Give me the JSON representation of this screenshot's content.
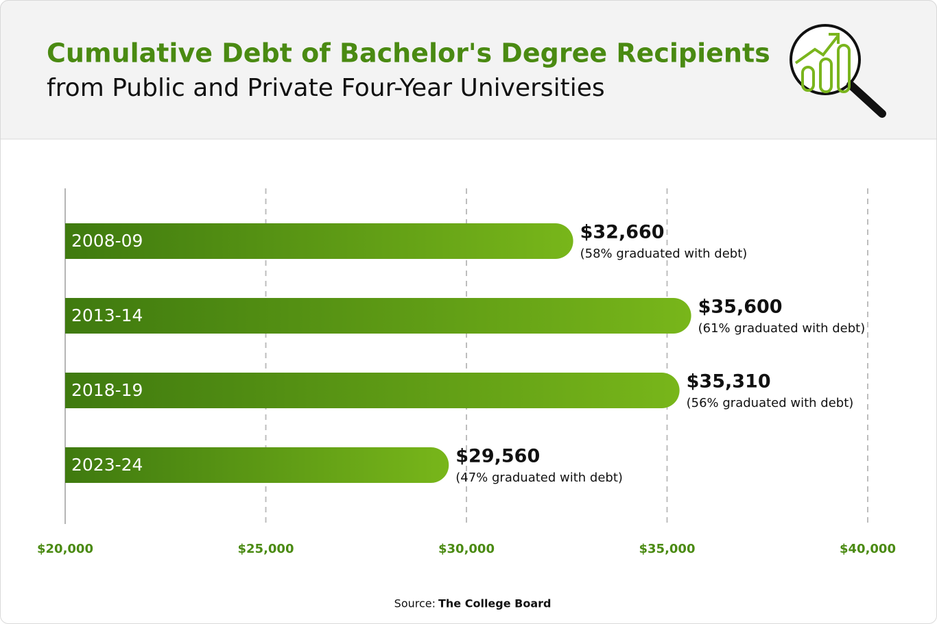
{
  "chart_data": {
    "type": "bar",
    "orientation": "horizontal",
    "title": "Cumulative Debt of Bachelor's Degree Recipients",
    "subtitle": "from Public and Private Four-Year Universities",
    "categories": [
      "2008-09",
      "2013-14",
      "2018-19",
      "2023-24"
    ],
    "values": [
      32660,
      35600,
      35310,
      29560
    ],
    "value_labels": [
      "$32,660",
      "$35,600",
      "$35,310",
      "$29,560"
    ],
    "annotations": [
      "(58% graduated with debt)",
      "(61% graduated with debt)",
      "(56% graduated with debt)",
      "(47% graduated with debt)"
    ],
    "colors": [
      "#3f7a0f",
      "#78b61a"
    ],
    "xlim": [
      20000,
      40000
    ],
    "xticks": [
      {
        "value": 20000,
        "label": "$20,000"
      },
      {
        "value": 25000,
        "label": "$25,000"
      },
      {
        "value": 30000,
        "label": "$30,000"
      },
      {
        "value": 35000,
        "label": "$35,000"
      },
      {
        "value": 40000,
        "label": "$40,000"
      }
    ],
    "grid": true,
    "source_label": "Source:",
    "source": "The College Board"
  }
}
